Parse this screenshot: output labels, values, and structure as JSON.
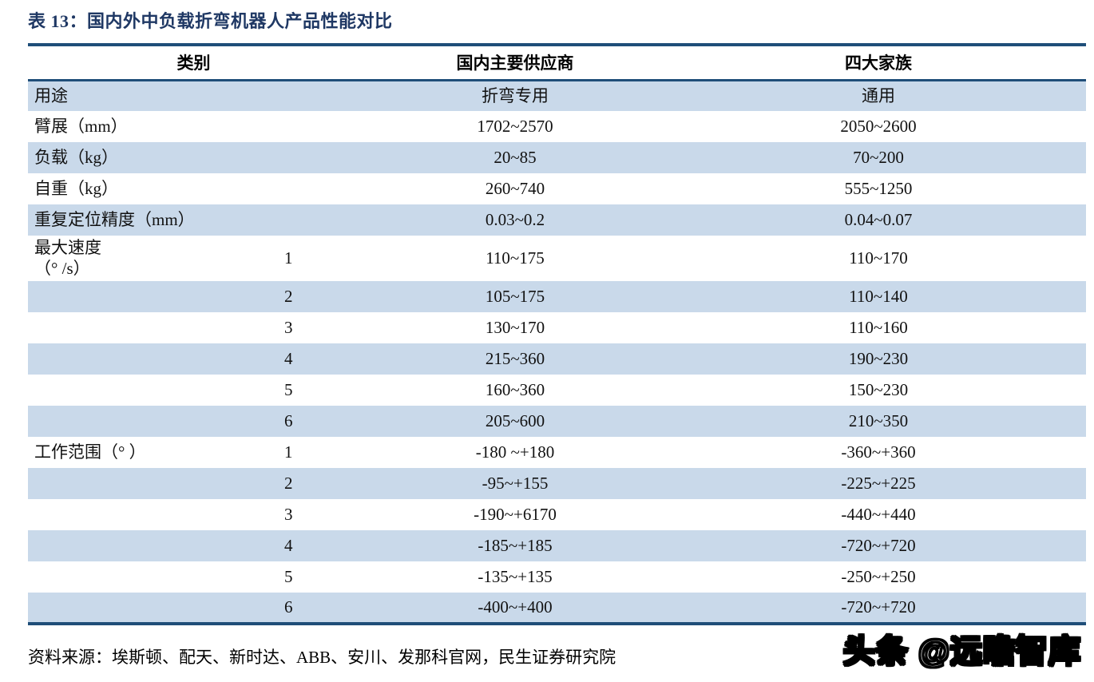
{
  "title": "表 13：国内外中负载折弯机器人产品性能对比",
  "colors": {
    "accent_border": "#1F4E79",
    "row_stripe": "#C9D9EA",
    "title_text": "#1F3864"
  },
  "table": {
    "headers": {
      "category": "类别",
      "domestic": "国内主要供应商",
      "four_families": "四大家族"
    },
    "rows": [
      {
        "label": "用途",
        "axis": "",
        "domestic": "折弯专用",
        "four_families": "通用"
      },
      {
        "label": "臂展（mm）",
        "axis": "",
        "domestic": "1702~2570",
        "four_families": "2050~2600"
      },
      {
        "label": "负载（kg）",
        "axis": "",
        "domestic": "20~85",
        "four_families": "70~200"
      },
      {
        "label": "自重（kg）",
        "axis": "",
        "domestic": "260~740",
        "four_families": "555~1250"
      },
      {
        "label": "重复定位精度（mm）",
        "axis": "",
        "domestic": "0.03~0.2",
        "four_families": "0.04~0.07"
      },
      {
        "label": "最大速度\n（° /s）",
        "axis": "1",
        "domestic": "110~175",
        "four_families": "110~170"
      },
      {
        "label": "",
        "axis": "2",
        "domestic": "105~175",
        "four_families": "110~140"
      },
      {
        "label": "",
        "axis": "3",
        "domestic": "130~170",
        "four_families": "110~160"
      },
      {
        "label": "",
        "axis": "4",
        "domestic": "215~360",
        "four_families": "190~230"
      },
      {
        "label": "",
        "axis": "5",
        "domestic": "160~360",
        "four_families": "150~230"
      },
      {
        "label": "",
        "axis": "6",
        "domestic": "205~600",
        "four_families": "210~350"
      },
      {
        "label": "工作范围（° ）",
        "axis": "1",
        "domestic": "-180 ~+180",
        "four_families": "-360~+360"
      },
      {
        "label": "",
        "axis": "2",
        "domestic": "-95~+155",
        "four_families": "-225~+225"
      },
      {
        "label": "",
        "axis": "3",
        "domestic": "-190~+6170",
        "four_families": "-440~+440"
      },
      {
        "label": "",
        "axis": "4",
        "domestic": "-185~+185",
        "four_families": "-720~+720"
      },
      {
        "label": "",
        "axis": "5",
        "domestic": "-135~+135",
        "four_families": "-250~+250"
      },
      {
        "label": "",
        "axis": "6",
        "domestic": "-400~+400",
        "four_families": "-720~+720"
      }
    ]
  },
  "footer": {
    "source": "资料来源：埃斯顿、配天、新时达、ABB、安川、发那科官网，民生证券研究院"
  },
  "watermark": "头条 @远瞻智库"
}
